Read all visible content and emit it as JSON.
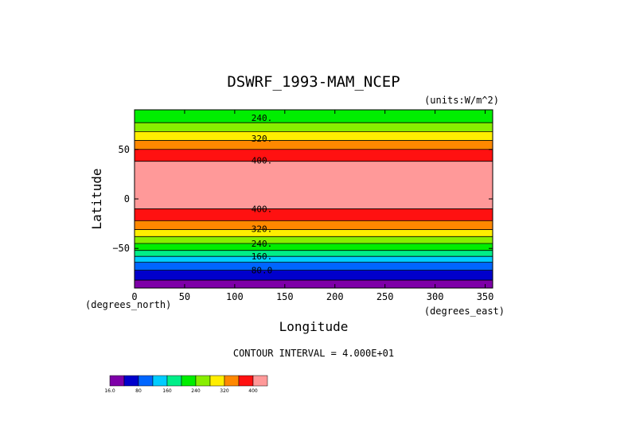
{
  "chart_data": {
    "type": "heatmap",
    "title": "DSWRF_1993-MAM_NCEP",
    "units": "(units:W/m^2)",
    "xlabel": "Longitude",
    "ylabel": "Latitude",
    "x_units": "(degrees_east)",
    "y_units": "(degrees_north)",
    "xlim": [
      0,
      357.5
    ],
    "ylim": [
      -90,
      90
    ],
    "x_ticks": [
      0,
      50,
      100,
      150,
      200,
      250,
      300,
      350
    ],
    "y_ticks": [
      -50,
      0,
      50
    ],
    "y_tick_labels": [
      "−50",
      "0",
      "50"
    ],
    "contour_interval": "CONTOUR INTERVAL = 4.000E+01",
    "levels": [
      16.0,
      40,
      80,
      120,
      160,
      200,
      240,
      280,
      320,
      360,
      400
    ],
    "colors": [
      "#7e00a8",
      "#0000cc",
      "#0066ff",
      "#00ccff",
      "#00ee88",
      "#00ee00",
      "#88ee00",
      "#ffee00",
      "#ff8800",
      "#ff1111",
      "#ff9999"
    ],
    "colorbar_labels": [
      {
        "level": 16.0,
        "text": "16.0"
      },
      {
        "level": 80,
        "text": "80"
      },
      {
        "level": 160,
        "text": "160"
      },
      {
        "level": 240,
        "text": "240"
      },
      {
        "level": 320,
        "text": "320"
      },
      {
        "level": 400,
        "text": "400"
      }
    ],
    "bands": [
      {
        "lat0": -90,
        "lat1": -82,
        "color": "#7e00a8"
      },
      {
        "lat0": -82,
        "lat1": -72,
        "color": "#0000cc"
      },
      {
        "lat0": -72,
        "lat1": -64,
        "color": "#0066ff"
      },
      {
        "lat0": -64,
        "lat1": -58,
        "color": "#00ccff"
      },
      {
        "lat0": -58,
        "lat1": -52,
        "color": "#00ee88"
      },
      {
        "lat0": -52,
        "lat1": -45,
        "color": "#00ee00"
      },
      {
        "lat0": -45,
        "lat1": -38,
        "color": "#88ee00"
      },
      {
        "lat0": -38,
        "lat1": -31,
        "color": "#ffee00"
      },
      {
        "lat0": -31,
        "lat1": -22,
        "color": "#ff8800"
      },
      {
        "lat0": -22,
        "lat1": -10,
        "color": "#ff1111"
      },
      {
        "lat0": -10,
        "lat1": 38,
        "color": "#ff9999"
      },
      {
        "lat0": 38,
        "lat1": 50,
        "color": "#ff1111"
      },
      {
        "lat0": 50,
        "lat1": 59,
        "color": "#ff8800"
      },
      {
        "lat0": 59,
        "lat1": 68,
        "color": "#ffee00"
      },
      {
        "lat0": 68,
        "lat1": 77,
        "color": "#88ee00"
      },
      {
        "lat0": 77,
        "lat1": 90,
        "color": "#00ee00"
      }
    ],
    "contours": [
      {
        "lat": 82,
        "label": "240."
      },
      {
        "lat": 61,
        "label": "320."
      },
      {
        "lat": 39,
        "label": "400."
      },
      {
        "lat": -10,
        "label": "400."
      },
      {
        "lat": -30,
        "label": "320."
      },
      {
        "lat": -45,
        "label": "240."
      },
      {
        "lat": -58,
        "label": "160."
      },
      {
        "lat": -72,
        "label": "80.0"
      }
    ]
  }
}
